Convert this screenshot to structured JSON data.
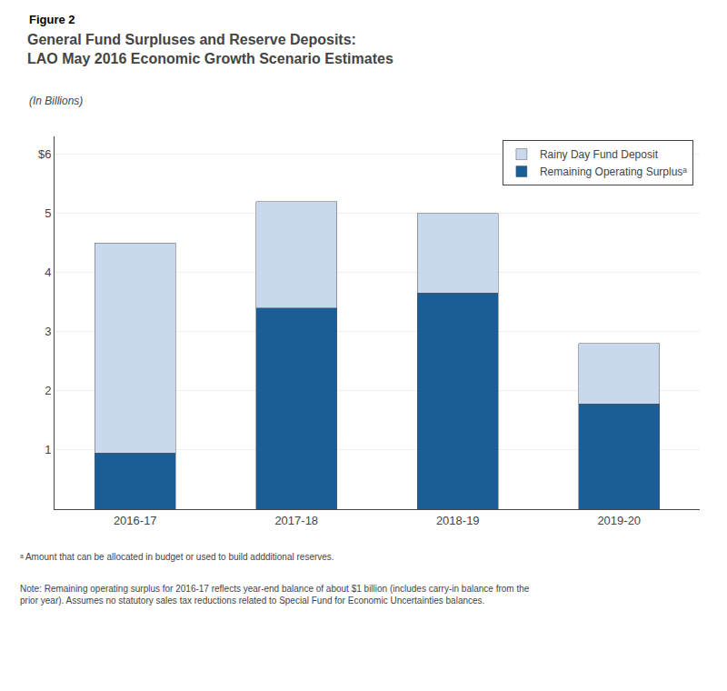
{
  "chart_data": {
    "type": "bar",
    "stacked": true,
    "title": "General Fund Surpluses and Reserve Deposits:\nLAO May 2016 Economic Growth Scenario Estimates",
    "subtitle": "(In Billions)",
    "annotations": [
      "Figure 2",
      "ᵃ Amount that can be allocated in budget or used to build addditional reserves.",
      "Note: Remaining operating surplus for 2016-17 reflects year-end balance of about $1 billion (includes carry-in balance from the\nprior year). Assumes no statutory sales tax reductions related to Special Fund for Economic Uncertainties balances."
    ],
    "categories": [
      "2016-17",
      "2017-18",
      "2018-19",
      "2019-20"
    ],
    "series": [
      {
        "name": "Remaining Operating Surplusᵃ",
        "color": "#1b5e96",
        "values": [
          0.95,
          3.4,
          3.65,
          1.78
        ]
      },
      {
        "name": "Rainy Day Fund Deposit",
        "color": "#c8d9ee",
        "values": [
          3.55,
          1.8,
          1.35,
          1.02
        ]
      }
    ],
    "ylim": [
      0,
      6.3
    ],
    "yticks": [
      1,
      2,
      3,
      4,
      5,
      {
        "value": 6,
        "label": "$6"
      }
    ],
    "grid": true,
    "legend": "upper right"
  }
}
